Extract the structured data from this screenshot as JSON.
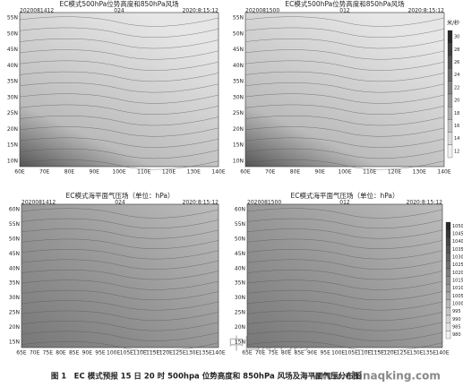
{
  "panels": [
    {
      "title": "EC模式500hPa位势高度和850hPa风场",
      "left_label": "2020081412",
      "mid_label": "024",
      "right_label": "2020:8:15:12",
      "x_ticks": [
        "60E",
        "70E",
        "80E",
        "90E",
        "100E",
        "110E",
        "120E",
        "130E",
        "140E"
      ],
      "y_ticks": [
        "55N",
        "50N",
        "45N",
        "40N",
        "35N",
        "30N",
        "25N",
        "20N",
        "15N",
        "10N"
      ]
    },
    {
      "title": "EC模式500hPa位势高度和850hPa风场",
      "left_label": "2020081500",
      "mid_label": "012",
      "right_label": "2020:8:15:12",
      "x_ticks": [
        "60E",
        "70E",
        "80E",
        "90E",
        "100E",
        "110E",
        "120E",
        "130E",
        "140E"
      ],
      "y_ticks": [
        "55N",
        "50N",
        "45N",
        "40N",
        "35N",
        "30N",
        "25N",
        "20N",
        "15N",
        "10N"
      ],
      "colorbar_unit": "米/秒",
      "colorbar": [
        "30",
        "28",
        "26",
        "24",
        "22",
        "20",
        "18",
        "16",
        "14",
        "12"
      ]
    },
    {
      "title": "EC模式海平面气压场（单位：hPa）",
      "left_label": "2020081412",
      "mid_label": "024",
      "right_label": "2020:8:15:12",
      "x_ticks": [
        "65E",
        "70E",
        "75E",
        "80E",
        "85E",
        "90E",
        "95E",
        "100E",
        "105E",
        "110E",
        "115E",
        "120E",
        "125E",
        "130E",
        "135E",
        "140E"
      ],
      "y_ticks": [
        "60N",
        "55N",
        "50N",
        "45N",
        "40N",
        "35N",
        "30N",
        "25N",
        "20N",
        "15N"
      ]
    },
    {
      "title": "EC模式海平面气压场（单位：hPa）",
      "left_label": "2020081500",
      "mid_label": "012",
      "right_label": "2020:8:15:12",
      "x_ticks": [
        "65E",
        "70E",
        "75E",
        "80E",
        "85E",
        "90E",
        "95E",
        "100E",
        "105E",
        "110E",
        "115E",
        "120E",
        "125E",
        "130E",
        "135E",
        "140E"
      ],
      "y_ticks": [
        "60N",
        "55N",
        "50N",
        "45N",
        "40N",
        "35N",
        "30N",
        "25N",
        "20N",
        "15N"
      ],
      "colorbar": [
        "1050",
        "1045",
        "1040",
        "1035",
        "1030",
        "1025",
        "1020",
        "1015",
        "1010",
        "1005",
        "1000",
        "995",
        "990",
        "985",
        "980"
      ]
    }
  ],
  "watermark": "中国期刊网",
  "watermark_url": "www.chinaqking.com",
  "caption": "图 1　EC 模式预报 15 日 20 时 500hpa 位势高度和 850hPa 风场及海平面气压分布图"
}
